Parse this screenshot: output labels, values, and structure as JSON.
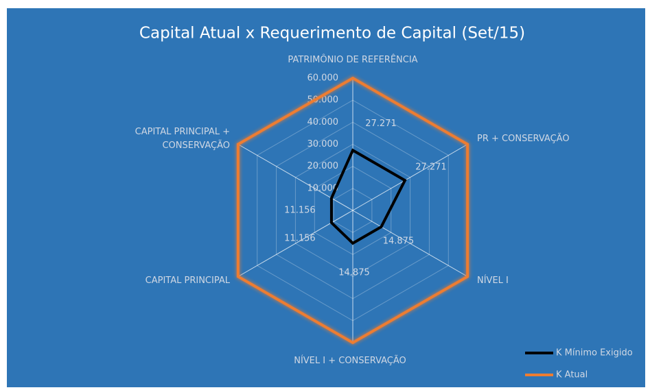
{
  "chart_data": {
    "type": "radar",
    "title": "Capital Atual x Requerimento de Capital (Set/15)",
    "categories": [
      "PATRIMÔNIO DE REFERÊNCIA",
      "PR + CONSERVAÇÃO",
      "NÍVEL I",
      "NÍVEL I + CONSERVAÇÃO",
      "CAPITAL PRINCIPAL",
      "CAPITAL PRINCIPAL + CONSERVAÇÃO"
    ],
    "series": [
      {
        "name": "K Mínimo Exigido",
        "color": "#000000",
        "values": [
          27271,
          27271,
          14875,
          14875,
          11156,
          11156
        ],
        "value_labels": [
          "27.271",
          "27.271",
          "14.875",
          "14.875",
          "11.156",
          "11.156"
        ]
      },
      {
        "name": "K Atual",
        "color": "#ed7d31",
        "values": [
          60000,
          60000,
          60000,
          60000,
          60000,
          60000
        ]
      }
    ],
    "ylim": [
      0,
      60000
    ],
    "yticks": [
      {
        "value": 10000,
        "label": "10.000"
      },
      {
        "value": 20000,
        "label": "20.000"
      },
      {
        "value": 30000,
        "label": "30.000"
      },
      {
        "value": 40000,
        "label": "40.000"
      },
      {
        "value": 50000,
        "label": "50.000"
      },
      {
        "value": 60000,
        "label": "60.000"
      }
    ],
    "grid": true,
    "legend": "bottom-right"
  }
}
